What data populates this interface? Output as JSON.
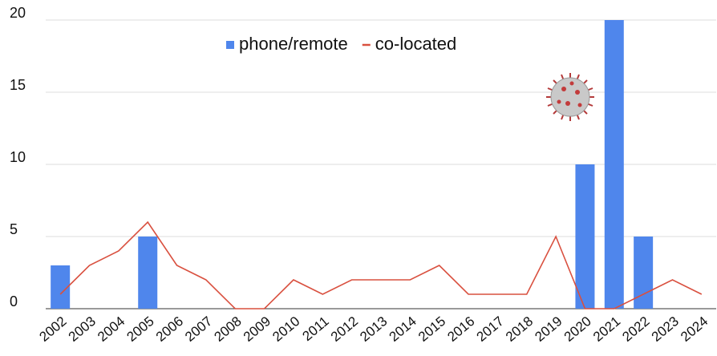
{
  "chart_data": {
    "type": "combo",
    "categories": [
      "2002",
      "2003",
      "2004",
      "2005",
      "2006",
      "2007",
      "2008",
      "2009",
      "2010",
      "2011",
      "2012",
      "2013",
      "2014",
      "2015",
      "2016",
      "2017",
      "2018",
      "2019",
      "2020",
      "2021",
      "2022",
      "2023",
      "2024"
    ],
    "series": [
      {
        "name": "phone/remote",
        "color": "#4f86ec",
        "type": "bar",
        "values": [
          3,
          0,
          0,
          5,
          0,
          0,
          0,
          0,
          0,
          0,
          0,
          0,
          0,
          0,
          0,
          0,
          0,
          0,
          10,
          20,
          5,
          0,
          0
        ]
      },
      {
        "name": "co-located",
        "color": "#d9503f",
        "type": "line",
        "values": [
          1,
          3,
          4,
          6,
          3,
          2,
          0,
          0,
          2,
          1,
          2,
          2,
          2,
          3,
          1,
          1,
          1,
          5,
          0,
          0,
          1,
          2,
          1
        ]
      }
    ],
    "ylim": [
      0,
      20
    ],
    "yticks": [
      0,
      5,
      10,
      15,
      20
    ],
    "grid": true,
    "legend": "top"
  }
}
